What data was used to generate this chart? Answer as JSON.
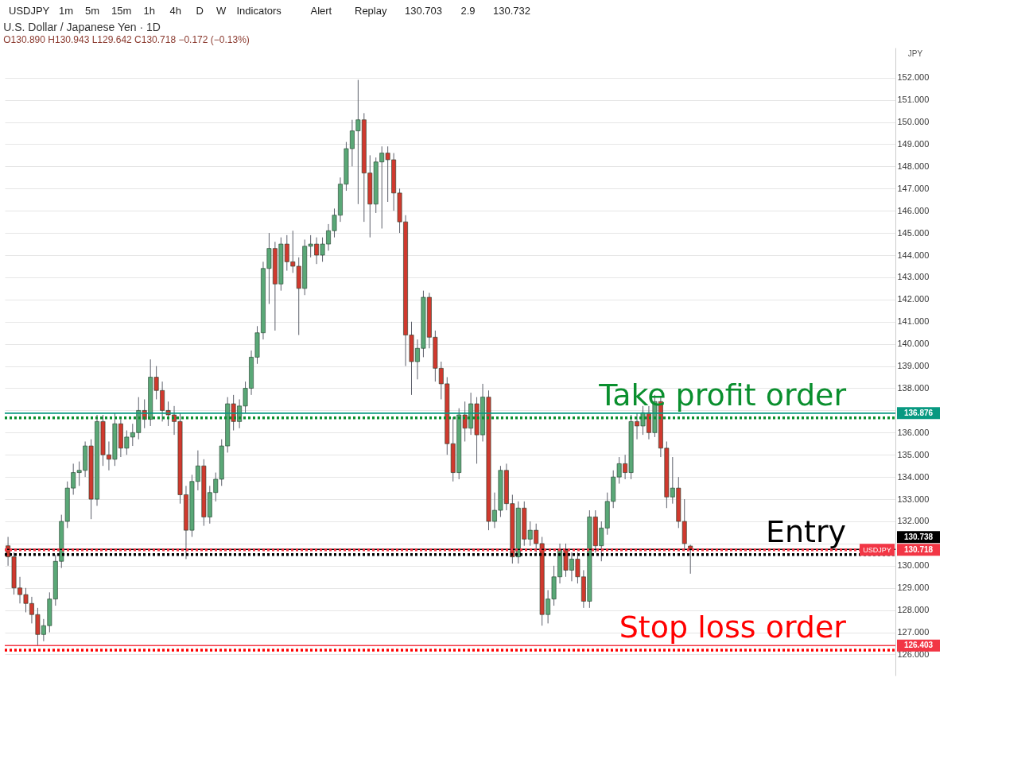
{
  "chart_data": {
    "type": "candlestick",
    "title": "U.S. Dollar / Japanese Yen · 1D",
    "subtitle": "O130.890 H130.943 L129.642 C130.718 −0.172 (−0.13%)",
    "ylabel": "JPY",
    "categories": [
      null,
      null,
      null,
      null,
      null,
      null,
      null,
      null,
      null,
      null,
      null,
      null,
      null,
      null,
      null,
      null,
      null,
      null,
      null,
      null,
      null,
      null,
      null,
      null,
      null,
      null,
      null,
      null,
      null,
      null,
      null,
      null,
      null,
      null,
      null,
      null,
      null,
      null,
      null,
      null,
      null,
      null,
      null,
      null,
      null,
      null,
      null,
      null,
      null,
      null,
      null,
      null,
      null,
      null,
      null,
      null,
      null,
      null,
      null,
      null,
      null,
      null,
      null,
      null,
      null,
      null,
      null,
      null,
      null,
      null,
      null,
      null,
      null,
      null,
      null,
      null,
      null,
      null,
      null,
      null,
      null,
      null,
      null,
      null,
      null,
      null,
      null,
      null,
      null,
      null,
      null,
      null,
      null,
      null,
      null,
      null,
      null,
      null,
      null,
      null,
      null,
      null,
      null,
      null,
      null,
      null,
      null,
      null,
      null,
      null,
      null,
      null,
      null,
      null,
      null,
      null,
      null,
      null,
      null,
      null,
      null,
      null,
      null,
      null,
      null,
      null,
      null,
      null,
      null,
      null,
      null,
      null,
      null,
      null,
      null,
      null,
      null,
      null,
      null,
      null,
      null,
      null,
      null,
      null,
      null,
      null,
      null,
      null,
      null,
      null
    ],
    "ohlc": [
      [
        130.9,
        131.3,
        130.0,
        130.4
      ],
      [
        130.4,
        130.6,
        128.7,
        129.0
      ],
      [
        129.0,
        129.5,
        128.3,
        128.7
      ],
      [
        128.7,
        129.0,
        127.9,
        128.3
      ],
      [
        128.3,
        128.6,
        127.4,
        127.8
      ],
      [
        127.8,
        128.1,
        126.4,
        126.9
      ],
      [
        126.9,
        127.6,
        126.6,
        127.3
      ],
      [
        127.3,
        128.8,
        127.0,
        128.5
      ],
      [
        128.5,
        130.5,
        128.2,
        130.2
      ],
      [
        130.2,
        132.3,
        129.9,
        132.0
      ],
      [
        132.0,
        133.8,
        131.7,
        133.5
      ],
      [
        133.5,
        134.6,
        133.2,
        134.2
      ],
      [
        134.2,
        134.7,
        133.6,
        134.3
      ],
      [
        134.3,
        135.6,
        134.0,
        135.4
      ],
      [
        135.4,
        135.7,
        132.1,
        133.0
      ],
      [
        133.0,
        136.8,
        132.7,
        136.5
      ],
      [
        136.5,
        136.8,
        134.5,
        135.0
      ],
      [
        135.0,
        135.6,
        134.3,
        134.8
      ],
      [
        134.8,
        136.9,
        134.5,
        136.4
      ],
      [
        136.4,
        136.6,
        134.9,
        135.3
      ],
      [
        135.3,
        136.1,
        135.0,
        135.8
      ],
      [
        135.8,
        136.4,
        135.4,
        136.0
      ],
      [
        136.0,
        137.6,
        135.7,
        137.0
      ],
      [
        137.0,
        137.5,
        136.2,
        136.6
      ],
      [
        136.6,
        139.3,
        136.3,
        138.5
      ],
      [
        138.5,
        139.0,
        137.5,
        137.9
      ],
      [
        137.9,
        138.3,
        136.5,
        137.0
      ],
      [
        137.0,
        137.4,
        136.3,
        136.8
      ],
      [
        136.8,
        137.2,
        135.9,
        136.5
      ],
      [
        136.5,
        136.9,
        132.8,
        133.2
      ],
      [
        133.2,
        133.6,
        130.3,
        131.6
      ],
      [
        131.6,
        134.1,
        131.3,
        133.8
      ],
      [
        133.8,
        135.2,
        133.4,
        134.5
      ],
      [
        134.5,
        134.8,
        131.8,
        132.2
      ],
      [
        132.2,
        133.6,
        131.9,
        133.3
      ],
      [
        133.3,
        134.2,
        132.9,
        133.9
      ],
      [
        133.9,
        135.7,
        133.6,
        135.4
      ],
      [
        135.4,
        137.6,
        135.1,
        137.3
      ],
      [
        137.3,
        137.7,
        136.1,
        136.5
      ],
      [
        136.5,
        137.5,
        136.2,
        137.2
      ],
      [
        137.2,
        138.3,
        136.9,
        138.0
      ],
      [
        138.0,
        139.7,
        137.7,
        139.4
      ],
      [
        139.4,
        140.8,
        139.1,
        140.5
      ],
      [
        140.5,
        143.7,
        140.2,
        143.4
      ],
      [
        143.4,
        145.0,
        141.8,
        144.3
      ],
      [
        144.3,
        144.6,
        140.6,
        142.7
      ],
      [
        142.7,
        144.8,
        142.4,
        144.5
      ],
      [
        144.5,
        144.9,
        143.3,
        143.7
      ],
      [
        143.7,
        145.1,
        143.2,
        143.5
      ],
      [
        143.5,
        143.9,
        140.4,
        142.5
      ],
      [
        142.5,
        144.7,
        142.2,
        144.4
      ],
      [
        144.4,
        144.9,
        143.9,
        144.5
      ],
      [
        144.5,
        144.8,
        143.6,
        144.0
      ],
      [
        144.0,
        144.8,
        143.7,
        144.5
      ],
      [
        144.5,
        145.4,
        144.2,
        145.1
      ],
      [
        145.1,
        146.1,
        144.8,
        145.8
      ],
      [
        145.8,
        147.5,
        145.5,
        147.2
      ],
      [
        147.2,
        149.1,
        146.9,
        148.8
      ],
      [
        148.8,
        150.1,
        148.0,
        149.6
      ],
      [
        149.6,
        151.9,
        146.3,
        150.1
      ],
      [
        150.1,
        150.4,
        145.5,
        147.7
      ],
      [
        147.7,
        148.5,
        144.8,
        146.3
      ],
      [
        146.3,
        148.4,
        145.9,
        148.2
      ],
      [
        148.2,
        148.9,
        145.2,
        148.6
      ],
      [
        148.6,
        148.9,
        146.4,
        148.3
      ],
      [
        148.3,
        148.6,
        146.0,
        146.8
      ],
      [
        146.8,
        147.0,
        145.0,
        145.5
      ],
      [
        145.5,
        145.8,
        139.0,
        140.4
      ],
      [
        140.4,
        141.0,
        137.7,
        139.2
      ],
      [
        139.2,
        140.2,
        138.4,
        139.8
      ],
      [
        139.8,
        142.4,
        139.4,
        142.1
      ],
      [
        142.1,
        142.3,
        139.8,
        140.3
      ],
      [
        140.3,
        140.6,
        138.3,
        138.9
      ],
      [
        138.9,
        139.2,
        137.5,
        138.2
      ],
      [
        138.2,
        138.5,
        135.0,
        135.5
      ],
      [
        135.5,
        136.7,
        133.8,
        134.2
      ],
      [
        134.2,
        137.1,
        133.9,
        136.8
      ],
      [
        136.8,
        137.4,
        135.6,
        136.2
      ],
      [
        136.2,
        137.8,
        135.9,
        137.3
      ],
      [
        137.3,
        137.6,
        134.6,
        135.9
      ],
      [
        135.9,
        138.2,
        135.6,
        137.6
      ],
      [
        137.6,
        137.9,
        131.6,
        132.0
      ],
      [
        132.0,
        133.3,
        131.7,
        132.5
      ],
      [
        132.5,
        134.5,
        132.2,
        134.3
      ],
      [
        134.3,
        134.6,
        132.5,
        132.8
      ],
      [
        132.8,
        133.2,
        130.1,
        130.4
      ],
      [
        130.4,
        132.9,
        130.1,
        132.6
      ],
      [
        132.6,
        132.9,
        130.9,
        131.2
      ],
      [
        131.2,
        132.0,
        130.9,
        131.6
      ],
      [
        131.6,
        131.9,
        130.6,
        131.0
      ],
      [
        131.0,
        131.3,
        127.3,
        127.8
      ],
      [
        127.8,
        128.9,
        127.4,
        128.5
      ],
      [
        128.5,
        130.0,
        128.2,
        129.5
      ],
      [
        129.5,
        131.0,
        129.2,
        130.7
      ],
      [
        130.7,
        131.0,
        129.5,
        129.8
      ],
      [
        129.8,
        130.6,
        129.3,
        130.3
      ],
      [
        130.3,
        130.6,
        129.2,
        129.5
      ],
      [
        129.5,
        129.8,
        128.1,
        128.4
      ],
      [
        128.4,
        132.5,
        128.1,
        132.2
      ],
      [
        132.2,
        132.5,
        130.6,
        130.9
      ],
      [
        130.9,
        132.0,
        130.2,
        131.7
      ],
      [
        131.7,
        133.3,
        131.4,
        132.9
      ],
      [
        132.9,
        134.3,
        132.6,
        134.0
      ],
      [
        134.0,
        134.9,
        133.7,
        134.6
      ],
      [
        134.6,
        135.0,
        133.9,
        134.2
      ],
      [
        134.2,
        136.8,
        133.9,
        136.5
      ],
      [
        136.5,
        136.9,
        135.7,
        136.3
      ],
      [
        136.3,
        137.2,
        135.9,
        136.9
      ],
      [
        136.9,
        137.2,
        135.7,
        136.0
      ],
      [
        136.0,
        137.7,
        135.8,
        137.4
      ],
      [
        137.4,
        137.6,
        134.9,
        135.3
      ],
      [
        135.3,
        135.6,
        132.6,
        133.1
      ],
      [
        133.1,
        134.9,
        132.8,
        133.5
      ],
      [
        133.5,
        134.0,
        131.7,
        132.0
      ],
      [
        132.0,
        133.0,
        130.7,
        131.0
      ],
      [
        130.89,
        130.943,
        129.642,
        130.718
      ],
      null,
      null,
      null,
      null,
      null,
      null,
      null,
      null,
      null,
      null,
      null,
      null,
      null,
      null,
      null,
      null,
      null,
      null,
      null,
      null,
      null,
      null,
      null,
      null,
      null,
      null,
      null,
      null,
      null,
      null,
      null,
      null,
      null,
      null
    ],
    "colors": [
      "#d0392e",
      "#d0392e",
      "#d0392e",
      "#d0392e",
      "#d0392e",
      "#d0392e",
      "#5aa877",
      "#5aa877",
      "#5aa877",
      "#5aa877",
      "#5aa877",
      "#5aa877",
      "#5aa877",
      "#5aa877",
      "#d0392e",
      "#5aa877",
      "#d0392e",
      "#d0392e",
      "#5aa877",
      "#d0392e",
      "#5aa877",
      "#5aa877",
      "#5aa877",
      "#d0392e",
      "#5aa877",
      "#d0392e",
      "#d0392e",
      "#d0392e",
      "#d0392e",
      "#d0392e",
      "#d0392e",
      "#5aa877",
      "#5aa877",
      "#d0392e",
      "#5aa877",
      "#5aa877",
      "#5aa877",
      "#5aa877",
      "#d0392e",
      "#5aa877",
      "#5aa877",
      "#5aa877",
      "#5aa877",
      "#5aa877",
      "#5aa877",
      "#d0392e",
      "#5aa877",
      "#d0392e",
      "#d0392e",
      "#d0392e",
      "#5aa877",
      "#5aa877",
      "#d0392e",
      "#5aa877",
      "#5aa877",
      "#5aa877",
      "#5aa877",
      "#5aa877",
      "#5aa877",
      "#5aa877",
      "#d0392e",
      "#d0392e",
      "#5aa877",
      "#5aa877",
      "#d0392e",
      "#d0392e",
      "#d0392e",
      "#d0392e",
      "#d0392e",
      "#5aa877",
      "#5aa877",
      "#d0392e",
      "#d0392e",
      "#d0392e",
      "#d0392e",
      "#d0392e",
      "#5aa877",
      "#d0392e",
      "#5aa877",
      "#d0392e",
      "#5aa877",
      "#d0392e",
      "#5aa877",
      "#5aa877",
      "#d0392e",
      "#d0392e",
      "#5aa877",
      "#d0392e",
      "#5aa877",
      "#d0392e",
      "#d0392e",
      "#5aa877",
      "#5aa877",
      "#5aa877",
      "#d0392e",
      "#5aa877",
      "#d0392e",
      "#d0392e",
      "#5aa877",
      "#d0392e",
      "#5aa877",
      "#5aa877",
      "#5aa877",
      "#5aa877",
      "#d0392e",
      "#5aa877",
      "#d0392e",
      "#5aa877",
      "#d0392e",
      "#5aa877",
      "#d0392e",
      "#d0392e",
      "#5aa877",
      "#d0392e",
      "#d0392e",
      "#d0392e",
      null,
      null,
      null,
      null,
      null,
      null,
      null,
      null,
      null,
      null,
      null,
      null,
      null,
      null,
      null,
      null,
      null,
      null,
      null,
      null,
      null,
      null,
      null,
      null,
      null,
      null,
      null,
      null,
      null,
      null,
      null,
      null,
      null,
      null
    ],
    "ylim": [
      125.05,
      153.35
    ],
    "yticks": [
      {
        "value": 126,
        "label": "126.000"
      },
      {
        "value": 127,
        "label": "127.000"
      },
      {
        "value": 128,
        "label": "128.000"
      },
      {
        "value": 129,
        "label": "129.000"
      },
      {
        "value": 130,
        "label": "130.000"
      },
      {
        "value": 131,
        "label": null
      },
      {
        "value": 132,
        "label": "132.000"
      },
      {
        "value": 133,
        "label": "133.000"
      },
      {
        "value": 134,
        "label": "134.000"
      },
      {
        "value": 135,
        "label": "135.000"
      },
      {
        "value": 136,
        "label": "136.000"
      },
      {
        "value": 137,
        "label": null
      },
      {
        "value": 138,
        "label": "138.000"
      },
      {
        "value": 139,
        "label": "139.000"
      },
      {
        "value": 140,
        "label": "140.000"
      },
      {
        "value": 141,
        "label": "141.000"
      },
      {
        "value": 142,
        "label": "142.000"
      },
      {
        "value": 143,
        "label": "143.000"
      },
      {
        "value": 144,
        "label": "144.000"
      },
      {
        "value": 145,
        "label": "145.000"
      },
      {
        "value": 146,
        "label": "146.000"
      },
      {
        "value": 147,
        "label": "147.000"
      },
      {
        "value": 148,
        "label": "148.000"
      },
      {
        "value": 149,
        "label": "149.000"
      },
      {
        "value": 150,
        "label": "150.000"
      },
      {
        "value": 151,
        "label": "151.000"
      },
      {
        "value": 152,
        "label": "152.000"
      }
    ],
    "ref_lines": [
      {
        "axis": "y",
        "value": 136.876,
        "label": "136.876",
        "color": "#089981",
        "line_style": "solid"
      },
      {
        "axis": "y",
        "value": 136.67,
        "label": "Take profit order",
        "color": "#0a8f2e",
        "line_style": "dotted"
      },
      {
        "axis": "y",
        "value": 130.738,
        "label": "130.738",
        "color": "#000000",
        "line_style": "solid"
      },
      {
        "axis": "y",
        "value": 130.718,
        "label": "130.718",
        "color": "#f23645",
        "line_style": "dotted"
      },
      {
        "axis": "y",
        "value": 130.5,
        "label": "Entry",
        "color": "#000000",
        "line_style": "dotted"
      },
      {
        "axis": "y",
        "value": 126.403,
        "label": "126.403",
        "color": "#f23645",
        "line_style": "solid"
      },
      {
        "axis": "y",
        "value": 126.2,
        "label": "Stop loss order",
        "color": "#ff0000",
        "line_style": "dotted"
      }
    ],
    "annotations": [
      "USDJPY",
      "1m",
      "5m",
      "15m",
      "1h",
      "4h",
      "D",
      "W",
      "Indicators",
      "Alert",
      "Replay",
      "130.703",
      "2.9",
      "130.732",
      {
        "text": "USDJPY",
        "y": 130.718
      }
    ],
    "grid": "y",
    "tick_labels": "y"
  }
}
